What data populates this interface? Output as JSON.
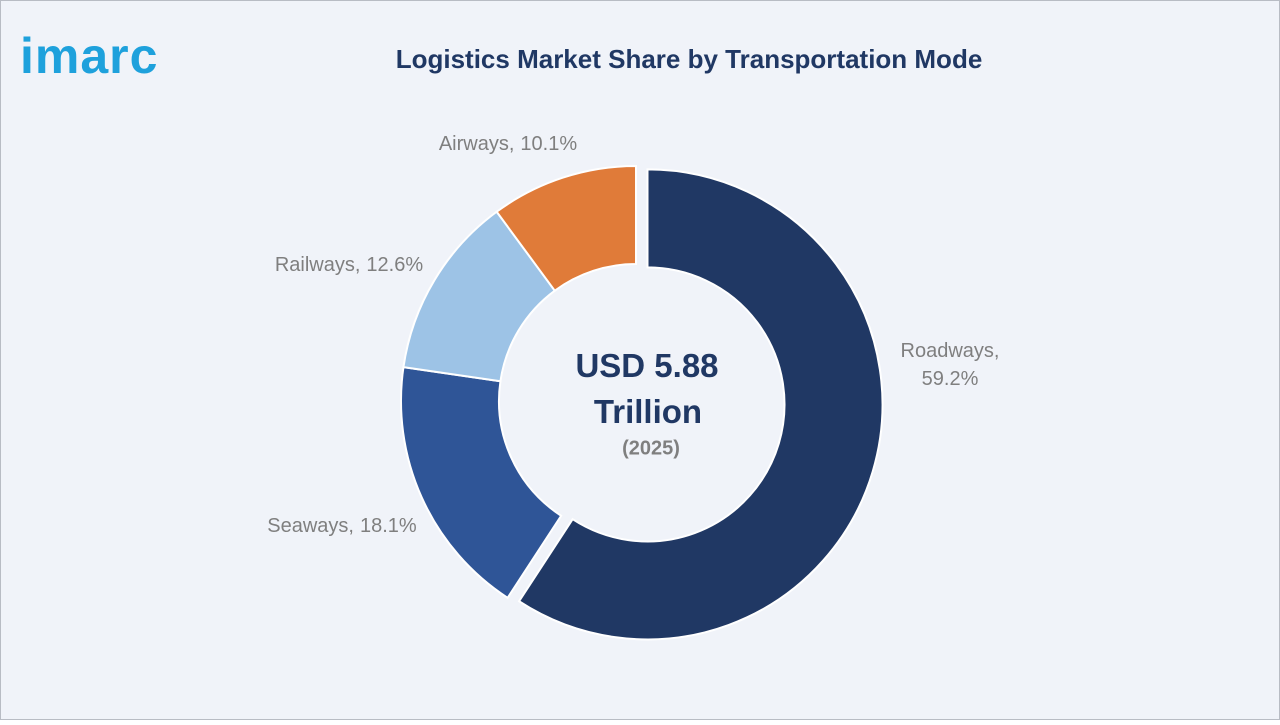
{
  "logo": "imarc",
  "chart_data": {
    "type": "donut",
    "title": "Logistics Market Share by Transportation Mode",
    "categories": [
      "Roadways,",
      "Seaways,",
      "Railways,",
      "Airways,"
    ],
    "values": [
      59.2,
      18.1,
      12.6,
      10.1
    ],
    "value_labels": [
      "59.2%",
      "18.1%",
      "12.6%",
      "10.1%"
    ],
    "colors": [
      "#203864",
      "#2f5597",
      "#9dc3e6",
      "#e07b39"
    ],
    "center_label": "USD 5.88 Trillion",
    "center_sublabel": "(2025)"
  }
}
